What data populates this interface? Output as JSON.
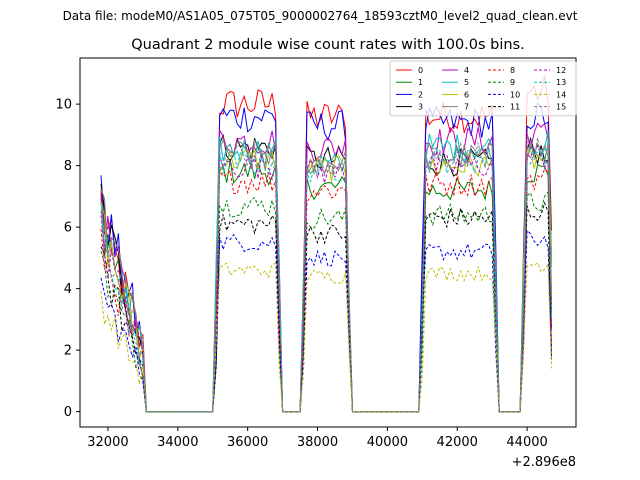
{
  "chart_data": {
    "type": "line",
    "suptitle": "Data file: modeM0/AS1A05_075T05_9000002764_18593cztM0_level2_quad_clean.evt",
    "title": "Quadrant 2 module wise count rates with 100.0s bins.",
    "xlabel": "",
    "ylabel": "",
    "x_offset_label": "+2.896e8",
    "xlim": [
      31200,
      45400
    ],
    "ylim": [
      -0.5,
      11.5
    ],
    "xticks": [
      32000,
      34000,
      36000,
      38000,
      40000,
      42000,
      44000
    ],
    "xtick_labels": [
      "32000",
      "34000",
      "36000",
      "38000",
      "40000",
      "42000",
      "44000"
    ],
    "yticks": [
      0,
      2,
      4,
      6,
      8,
      10
    ],
    "ytick_labels": [
      "0",
      "2",
      "4",
      "6",
      "8",
      "10"
    ],
    "legend_location": "upper right",
    "legend_columns": 4,
    "segments": [
      {
        "start": 31800,
        "end": 33000
      },
      {
        "start": 35100,
        "end": 36900
      },
      {
        "start": 37600,
        "end": 38900
      },
      {
        "start": 41000,
        "end": 43100
      },
      {
        "start": 43900,
        "end": 44700
      }
    ],
    "series": [
      {
        "name": "0",
        "color": "#ff0000",
        "style": "solid",
        "segment_levels": [
          5.0,
          10.0,
          9.6,
          9.6,
          10.4
        ]
      },
      {
        "name": "1",
        "color": "#008000",
        "style": "solid",
        "segment_levels": [
          4.8,
          7.8,
          7.3,
          7.2,
          7.8
        ]
      },
      {
        "name": "2",
        "color": "#0000ff",
        "style": "solid",
        "segment_levels": [
          5.3,
          9.6,
          9.3,
          9.4,
          9.6
        ]
      },
      {
        "name": "3",
        "color": "#000000",
        "style": "solid",
        "segment_levels": [
          5.1,
          8.6,
          8.2,
          8.1,
          8.5
        ]
      },
      {
        "name": "4",
        "color": "#bf00bf",
        "style": "solid",
        "segment_levels": [
          4.9,
          8.8,
          8.6,
          8.8,
          9.0
        ]
      },
      {
        "name": "5",
        "color": "#00bfbf",
        "style": "solid",
        "segment_levels": [
          4.7,
          8.5,
          8.0,
          8.6,
          8.7
        ]
      },
      {
        "name": "6",
        "color": "#bfbf00",
        "style": "solid",
        "segment_levels": [
          4.7,
          8.2,
          7.9,
          8.0,
          8.2
        ]
      },
      {
        "name": "7",
        "color": "#808080",
        "style": "solid",
        "segment_levels": [
          5.0,
          8.4,
          8.1,
          8.3,
          8.5
        ]
      },
      {
        "name": "8",
        "color": "#ff0000",
        "style": "dashed",
        "segment_levels": [
          4.1,
          7.5,
          7.2,
          7.4,
          7.6
        ]
      },
      {
        "name": "9",
        "color": "#008000",
        "style": "dashed",
        "segment_levels": [
          3.6,
          6.7,
          6.3,
          6.4,
          6.8
        ]
      },
      {
        "name": "10",
        "color": "#0000ff",
        "style": "dashed",
        "segment_levels": [
          3.0,
          5.5,
          5.0,
          5.2,
          5.6
        ]
      },
      {
        "name": "11",
        "color": "#000000",
        "style": "dashed",
        "segment_levels": [
          3.7,
          6.1,
          5.8,
          6.3,
          6.5
        ]
      },
      {
        "name": "12",
        "color": "#bf00bf",
        "style": "dashed",
        "segment_levels": [
          4.4,
          8.0,
          7.8,
          8.0,
          8.3
        ]
      },
      {
        "name": "13",
        "color": "#00bfbf",
        "style": "dashed",
        "segment_levels": [
          4.3,
          8.1,
          7.9,
          8.2,
          8.4
        ]
      },
      {
        "name": "14",
        "color": "#bfbf00",
        "style": "dashed",
        "segment_levels": [
          2.7,
          4.6,
          4.4,
          4.5,
          4.8
        ]
      },
      {
        "name": "15",
        "color": "#808080",
        "style": "dashed",
        "segment_levels": [
          4.5,
          8.3,
          8.0,
          8.3,
          8.6
        ]
      }
    ]
  }
}
